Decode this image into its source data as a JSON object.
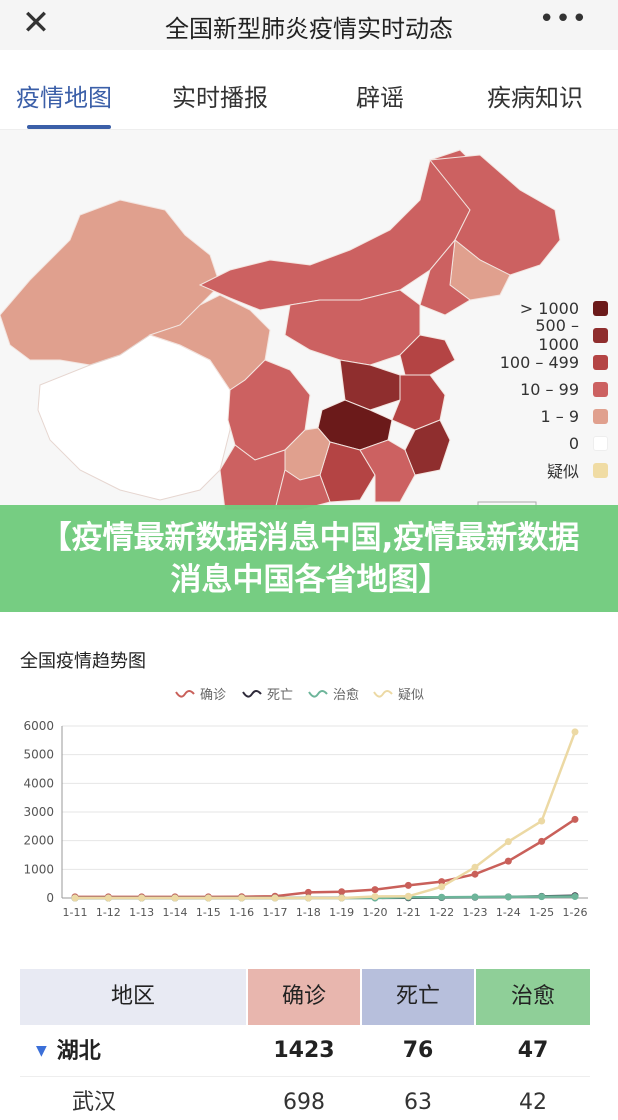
{
  "header": {
    "close_icon": "close-icon",
    "title": "全国新型肺炎疫情实时动态",
    "more_icon": "more-icon",
    "more_glyph": "•••"
  },
  "tabs": [
    {
      "label": "疫情地图",
      "active": true
    },
    {
      "label": "实时播报",
      "active": false
    },
    {
      "label": "辟谣",
      "active": false
    },
    {
      "label": "疾病知识",
      "active": false
    }
  ],
  "map": {
    "legend": [
      {
        "label": "> 1000",
        "color": "#6b1a1a"
      },
      {
        "label": "500 – 1000",
        "color": "#8f2e2e"
      },
      {
        "label": "100 – 499",
        "color": "#b44444"
      },
      {
        "label": "10 – 99",
        "color": "#cc6161"
      },
      {
        "label": "1 – 9",
        "color": "#e0a08e"
      },
      {
        "label": "0",
        "color": "#ffffff"
      },
      {
        "label": "疑似",
        "color": "#f0dca4"
      }
    ]
  },
  "banner": {
    "text": "【疫情最新数据消息中国,疫情最新数据消息中国各省地图】"
  },
  "chart": {
    "title": "全国疫情趋势图"
  },
  "chart_data": {
    "type": "line",
    "title": "全国疫情趋势图",
    "x": [
      "1-11",
      "1-12",
      "1-13",
      "1-14",
      "1-15",
      "1-16",
      "1-17",
      "1-18",
      "1-19",
      "1-20",
      "1-21",
      "1-22",
      "1-23",
      "1-24",
      "1-25",
      "1-26"
    ],
    "ylim": [
      0,
      6000
    ],
    "yticks": [
      0,
      1000,
      2000,
      3000,
      4000,
      5000,
      6000
    ],
    "legend_position": "top-center",
    "grid": true,
    "series": [
      {
        "name": "确诊",
        "color": "#c9605a",
        "values": [
          41,
          41,
          41,
          41,
          41,
          45,
          62,
          198,
          218,
          291,
          440,
          571,
          830,
          1287,
          1975,
          2744
        ]
      },
      {
        "name": "死亡",
        "color": "#2e2a3a",
        "values": [
          1,
          1,
          1,
          1,
          2,
          2,
          2,
          3,
          4,
          6,
          9,
          17,
          25,
          41,
          56,
          80
        ]
      },
      {
        "name": "治愈",
        "color": "#6db59a",
        "values": [
          0,
          0,
          0,
          0,
          0,
          0,
          0,
          0,
          0,
          0,
          25,
          28,
          34,
          38,
          49,
          51
        ]
      },
      {
        "name": "疑似",
        "color": "#ecd9a4",
        "values": [
          0,
          0,
          0,
          0,
          0,
          0,
          0,
          0,
          0,
          54,
          60,
          393,
          1072,
          1965,
          2684,
          5794
        ]
      }
    ]
  },
  "table": {
    "headers": [
      {
        "label": "地区",
        "bg": "#e8eaf3"
      },
      {
        "label": "确诊",
        "bg": "#e8b6ae"
      },
      {
        "label": "死亡",
        "bg": "#b7bfdc"
      },
      {
        "label": "治愈",
        "bg": "#8fcf98"
      }
    ],
    "rows": [
      {
        "region": "湖北",
        "confirmed": "1423",
        "dead": "76",
        "cured": "47",
        "expandable": true,
        "bold": true,
        "arrow": "▼"
      },
      {
        "region": "武汉",
        "confirmed": "698",
        "dead": "63",
        "cured": "42",
        "expandable": false,
        "bold": false,
        "arrow": ""
      }
    ]
  }
}
